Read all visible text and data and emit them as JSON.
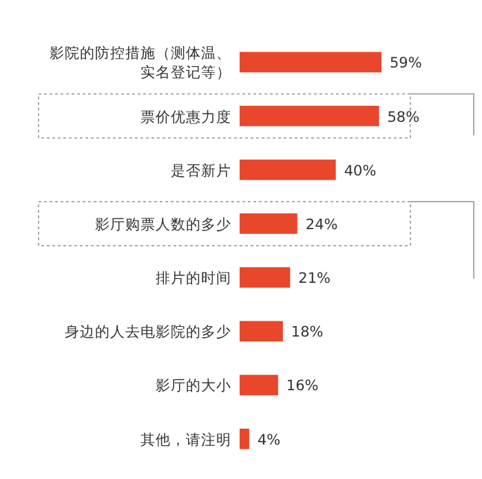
{
  "chart_data": {
    "type": "bar",
    "orientation": "horizontal",
    "categories": [
      "影院的防控措施（测体温、实名登记等）",
      "票价优惠力度",
      "是否新片",
      "影厅购票人数的多少",
      "排片的时间",
      "身边的人去电影院的多少",
      "影厅的大小",
      "其他，请注明"
    ],
    "values": [
      59,
      58,
      40,
      24,
      21,
      18,
      16,
      4
    ],
    "value_labels": [
      "59%",
      "58%",
      "40%",
      "24%",
      "21%",
      "18%",
      "16%",
      "4%"
    ],
    "color": "#e8472b"
  }
}
